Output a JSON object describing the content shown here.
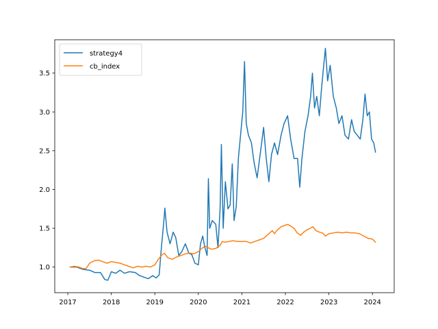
{
  "chart_data": {
    "type": "line",
    "title": "",
    "xlabel": "",
    "ylabel": "",
    "xlim": [
      2016.7,
      2024.5
    ],
    "ylim": [
      0.67,
      3.93
    ],
    "xticks": [
      {
        "value": 2017,
        "label": "2017"
      },
      {
        "value": 2018,
        "label": "2018"
      },
      {
        "value": 2019,
        "label": "2019"
      },
      {
        "value": 2020,
        "label": "2020"
      },
      {
        "value": 2021,
        "label": "2021"
      },
      {
        "value": 2022,
        "label": "2022"
      },
      {
        "value": 2023,
        "label": "2023"
      },
      {
        "value": 2024,
        "label": "2024"
      }
    ],
    "yticks": [
      {
        "value": 1.0,
        "label": "1.0"
      },
      {
        "value": 1.5,
        "label": "1.5"
      },
      {
        "value": 2.0,
        "label": "2.0"
      },
      {
        "value": 2.5,
        "label": "2.5"
      },
      {
        "value": 3.0,
        "label": "3.0"
      },
      {
        "value": 3.5,
        "label": "3.5"
      }
    ],
    "grid": false,
    "legend_position": "top-left",
    "series": [
      {
        "name": "strategy4",
        "color": "#1f77b4",
        "points": [
          [
            2017.05,
            1.0
          ],
          [
            2017.2,
            1.0
          ],
          [
            2017.35,
            0.97
          ],
          [
            2017.5,
            0.96
          ],
          [
            2017.62,
            0.93
          ],
          [
            2017.75,
            0.93
          ],
          [
            2017.85,
            0.84
          ],
          [
            2017.92,
            0.83
          ],
          [
            2018.0,
            0.94
          ],
          [
            2018.1,
            0.92
          ],
          [
            2018.2,
            0.96
          ],
          [
            2018.3,
            0.92
          ],
          [
            2018.42,
            0.94
          ],
          [
            2018.55,
            0.93
          ],
          [
            2018.65,
            0.89
          ],
          [
            2018.75,
            0.87
          ],
          [
            2018.85,
            0.85
          ],
          [
            2018.95,
            0.89
          ],
          [
            2019.03,
            0.86
          ],
          [
            2019.1,
            0.9
          ],
          [
            2019.15,
            1.25
          ],
          [
            2019.2,
            1.55
          ],
          [
            2019.23,
            1.76
          ],
          [
            2019.28,
            1.45
          ],
          [
            2019.35,
            1.3
          ],
          [
            2019.42,
            1.45
          ],
          [
            2019.48,
            1.38
          ],
          [
            2019.55,
            1.15
          ],
          [
            2019.62,
            1.2
          ],
          [
            2019.7,
            1.3
          ],
          [
            2019.78,
            1.18
          ],
          [
            2019.85,
            1.16
          ],
          [
            2019.92,
            1.05
          ],
          [
            2020.0,
            1.03
          ],
          [
            2020.05,
            1.3
          ],
          [
            2020.1,
            1.4
          ],
          [
            2020.15,
            1.25
          ],
          [
            2020.2,
            1.15
          ],
          [
            2020.23,
            2.14
          ],
          [
            2020.26,
            1.5
          ],
          [
            2020.32,
            1.6
          ],
          [
            2020.4,
            1.55
          ],
          [
            2020.45,
            1.25
          ],
          [
            2020.5,
            1.75
          ],
          [
            2020.53,
            2.58
          ],
          [
            2020.57,
            1.5
          ],
          [
            2020.62,
            2.1
          ],
          [
            2020.68,
            1.75
          ],
          [
            2020.73,
            1.8
          ],
          [
            2020.78,
            2.33
          ],
          [
            2020.82,
            1.6
          ],
          [
            2020.87,
            1.78
          ],
          [
            2020.92,
            2.4
          ],
          [
            2020.97,
            2.7
          ],
          [
            2021.02,
            3.0
          ],
          [
            2021.06,
            3.65
          ],
          [
            2021.1,
            2.85
          ],
          [
            2021.15,
            2.7
          ],
          [
            2021.22,
            2.6
          ],
          [
            2021.28,
            2.35
          ],
          [
            2021.35,
            2.15
          ],
          [
            2021.42,
            2.45
          ],
          [
            2021.5,
            2.8
          ],
          [
            2021.56,
            2.4
          ],
          [
            2021.62,
            2.1
          ],
          [
            2021.68,
            2.45
          ],
          [
            2021.75,
            2.6
          ],
          [
            2021.82,
            2.45
          ],
          [
            2021.9,
            2.7
          ],
          [
            2021.97,
            2.85
          ],
          [
            2022.05,
            2.95
          ],
          [
            2022.12,
            2.65
          ],
          [
            2022.2,
            2.4
          ],
          [
            2022.28,
            2.4
          ],
          [
            2022.33,
            2.03
          ],
          [
            2022.38,
            2.4
          ],
          [
            2022.45,
            2.75
          ],
          [
            2022.52,
            2.95
          ],
          [
            2022.58,
            3.2
          ],
          [
            2022.62,
            3.5
          ],
          [
            2022.67,
            3.05
          ],
          [
            2022.72,
            3.2
          ],
          [
            2022.78,
            2.95
          ],
          [
            2022.83,
            3.3
          ],
          [
            2022.88,
            3.6
          ],
          [
            2022.92,
            3.82
          ],
          [
            2022.97,
            3.4
          ],
          [
            2023.03,
            3.6
          ],
          [
            2023.1,
            3.2
          ],
          [
            2023.17,
            3.05
          ],
          [
            2023.23,
            2.85
          ],
          [
            2023.3,
            2.95
          ],
          [
            2023.37,
            2.7
          ],
          [
            2023.45,
            2.65
          ],
          [
            2023.52,
            2.9
          ],
          [
            2023.58,
            2.75
          ],
          [
            2023.65,
            2.7
          ],
          [
            2023.72,
            2.65
          ],
          [
            2023.78,
            2.9
          ],
          [
            2023.83,
            3.23
          ],
          [
            2023.88,
            2.95
          ],
          [
            2023.93,
            3.0
          ],
          [
            2023.98,
            2.65
          ],
          [
            2024.03,
            2.6
          ],
          [
            2024.07,
            2.48
          ]
        ]
      },
      {
        "name": "cb_index",
        "color": "#ff7f0e",
        "points": [
          [
            2017.05,
            1.0
          ],
          [
            2017.15,
            1.01
          ],
          [
            2017.25,
            1.0
          ],
          [
            2017.35,
            0.98
          ],
          [
            2017.42,
            0.98
          ],
          [
            2017.5,
            1.05
          ],
          [
            2017.6,
            1.08
          ],
          [
            2017.7,
            1.09
          ],
          [
            2017.8,
            1.07
          ],
          [
            2017.9,
            1.05
          ],
          [
            2018.0,
            1.07
          ],
          [
            2018.1,
            1.06
          ],
          [
            2018.2,
            1.05
          ],
          [
            2018.3,
            1.03
          ],
          [
            2018.4,
            1.01
          ],
          [
            2018.5,
            0.99
          ],
          [
            2018.6,
            1.01
          ],
          [
            2018.7,
            1.0
          ],
          [
            2018.8,
            1.01
          ],
          [
            2018.9,
            1.0
          ],
          [
            2019.0,
            1.03
          ],
          [
            2019.08,
            1.1
          ],
          [
            2019.15,
            1.15
          ],
          [
            2019.22,
            1.18
          ],
          [
            2019.3,
            1.12
          ],
          [
            2019.4,
            1.1
          ],
          [
            2019.5,
            1.13
          ],
          [
            2019.6,
            1.15
          ],
          [
            2019.7,
            1.17
          ],
          [
            2019.8,
            1.18
          ],
          [
            2019.9,
            1.17
          ],
          [
            2020.0,
            1.2
          ],
          [
            2020.08,
            1.24
          ],
          [
            2020.15,
            1.27
          ],
          [
            2020.22,
            1.25
          ],
          [
            2020.3,
            1.23
          ],
          [
            2020.4,
            1.24
          ],
          [
            2020.5,
            1.28
          ],
          [
            2020.55,
            1.33
          ],
          [
            2020.62,
            1.32
          ],
          [
            2020.7,
            1.33
          ],
          [
            2020.8,
            1.34
          ],
          [
            2020.9,
            1.33
          ],
          [
            2021.0,
            1.33
          ],
          [
            2021.1,
            1.33
          ],
          [
            2021.2,
            1.31
          ],
          [
            2021.3,
            1.33
          ],
          [
            2021.4,
            1.35
          ],
          [
            2021.5,
            1.37
          ],
          [
            2021.6,
            1.42
          ],
          [
            2021.7,
            1.47
          ],
          [
            2021.75,
            1.43
          ],
          [
            2021.8,
            1.47
          ],
          [
            2021.9,
            1.52
          ],
          [
            2022.0,
            1.54
          ],
          [
            2022.05,
            1.55
          ],
          [
            2022.12,
            1.53
          ],
          [
            2022.2,
            1.5
          ],
          [
            2022.27,
            1.44
          ],
          [
            2022.35,
            1.41
          ],
          [
            2022.42,
            1.45
          ],
          [
            2022.5,
            1.48
          ],
          [
            2022.57,
            1.5
          ],
          [
            2022.63,
            1.52
          ],
          [
            2022.7,
            1.47
          ],
          [
            2022.78,
            1.45
          ],
          [
            2022.85,
            1.44
          ],
          [
            2022.92,
            1.4
          ],
          [
            2023.0,
            1.43
          ],
          [
            2023.1,
            1.44
          ],
          [
            2023.2,
            1.45
          ],
          [
            2023.3,
            1.44
          ],
          [
            2023.4,
            1.45
          ],
          [
            2023.5,
            1.44
          ],
          [
            2023.6,
            1.44
          ],
          [
            2023.7,
            1.43
          ],
          [
            2023.8,
            1.4
          ],
          [
            2023.9,
            1.37
          ],
          [
            2024.0,
            1.36
          ],
          [
            2024.07,
            1.32
          ]
        ]
      }
    ]
  }
}
